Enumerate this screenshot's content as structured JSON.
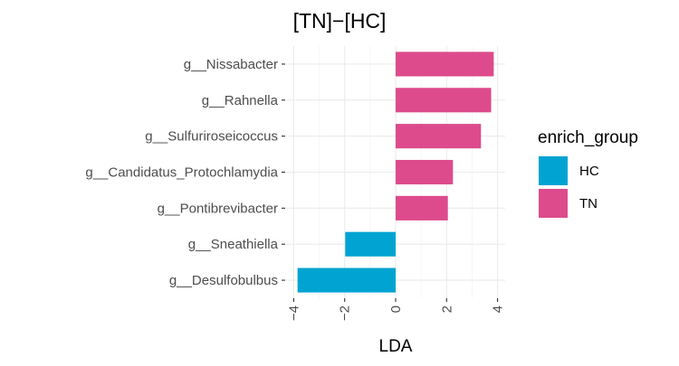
{
  "chart_data": {
    "type": "bar",
    "orientation": "horizontal",
    "title": "[TN]−[HC]",
    "xlabel": "LDA",
    "ylabel": "",
    "xlim": [
      -4.3,
      4.3
    ],
    "x_ticks": [
      -4,
      -2,
      0,
      2,
      4
    ],
    "grid": true,
    "categories": [
      "g__Nissabacter",
      "g__Rahnella",
      "g__Sulfuriroseicoccus",
      "g__Candidatus_Protochlamydia",
      "g__Pontibrevibacter",
      "g__Sneathiella",
      "g__Desulfobulbus"
    ],
    "values": [
      3.85,
      3.75,
      3.35,
      2.25,
      2.05,
      -1.98,
      -3.85
    ],
    "groups": [
      "TN",
      "TN",
      "TN",
      "TN",
      "TN",
      "HC",
      "HC"
    ],
    "legend": {
      "title": "enrich_group",
      "placement": "right",
      "entries": [
        {
          "label": "HC",
          "color": "#00a3d2"
        },
        {
          "label": "TN",
          "color": "#dd4b8c"
        }
      ]
    }
  }
}
